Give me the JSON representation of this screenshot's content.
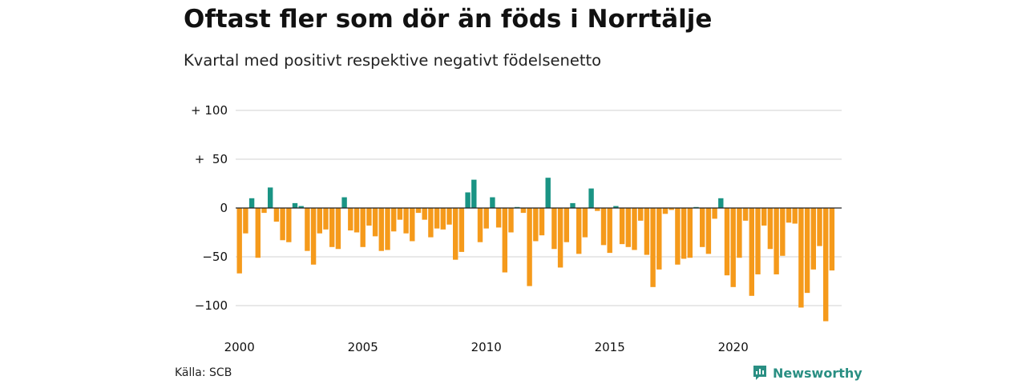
{
  "title": "Oftast fler som dör än föds i Norrtälje",
  "subtitle": "Kvartal med positivt respektive negativt födelsenetto",
  "source": "Källa: SCB",
  "brand": "Newsworthy",
  "colors": {
    "positive": "#1a9484",
    "negative": "#f59a1b",
    "grid": "#d9d9d9",
    "zero": "#222222"
  },
  "chart_data": {
    "type": "bar",
    "y_ticks": [
      {
        "value": 100,
        "label": "+ 100"
      },
      {
        "value": 50,
        "label": "+  50"
      },
      {
        "value": 0,
        "label": "0"
      },
      {
        "value": -50,
        "label": "−50"
      },
      {
        "value": -100,
        "label": "−100"
      }
    ],
    "x_ticks": [
      "2000",
      "2005",
      "2010",
      "2015",
      "2020"
    ],
    "ylim": [
      -115,
      100
    ],
    "x_start": "2000 Q1",
    "grid": true,
    "values": [
      -67,
      -26,
      10,
      -51,
      -5,
      21,
      -14,
      -33,
      -35,
      5,
      2,
      -44,
      -58,
      -26,
      -22,
      -40,
      -42,
      11,
      -23,
      -25,
      -40,
      -18,
      -29,
      -44,
      -43,
      -24,
      -12,
      -26,
      -34,
      -5,
      -12,
      -30,
      -21,
      -22,
      -17,
      -53,
      -45,
      16,
      29,
      -35,
      -21,
      11,
      -20,
      -66,
      -25,
      1,
      -5,
      -80,
      -34,
      -28,
      31,
      -42,
      -61,
      -35,
      5,
      -47,
      -30,
      20,
      -3,
      -38,
      -46,
      2,
      -37,
      -40,
      -43,
      -13,
      -48,
      -81,
      -63,
      -6,
      -2,
      -58,
      -52,
      -51,
      1,
      -40,
      -47,
      -11,
      10,
      -69,
      -81,
      -51,
      -13,
      -90,
      -68,
      -18,
      -42,
      -68,
      -49,
      -15,
      -16,
      -102,
      -87,
      -63,
      -39,
      -116,
      -64
    ]
  }
}
